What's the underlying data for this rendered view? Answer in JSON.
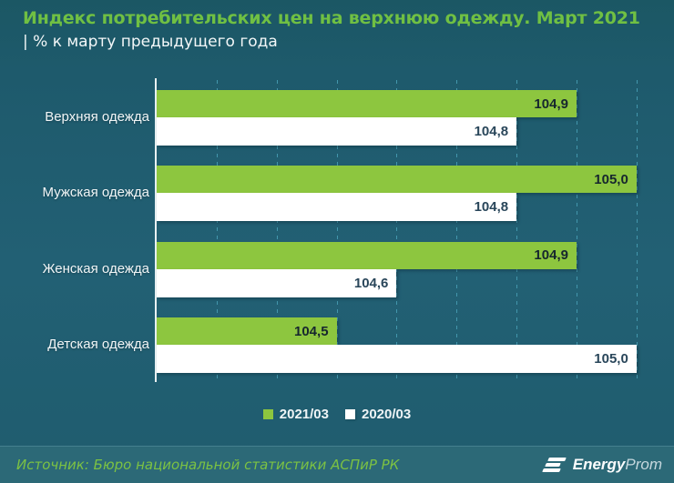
{
  "header": {
    "title": "Индекс потребительских цен на верхнюю одежду. Март 2021",
    "subtitle": "| % к марту предыдущего года"
  },
  "chart_data": {
    "type": "bar",
    "orientation": "horizontal",
    "title": "Индекс потребительских цен на верхнюю одежду. Март 2021",
    "subtitle": "| % к марту предыдущего года",
    "categories": [
      "Верхняя одежда",
      "Мужская одежда",
      "Женская одежда",
      "Детская одежда"
    ],
    "series": [
      {
        "name": "2021/03",
        "color": "#8dc63f",
        "values": [
          104.9,
          105.0,
          104.9,
          104.5
        ],
        "labels": [
          "104,9",
          "105,0",
          "104,9",
          "104,5"
        ]
      },
      {
        "name": "2020/03",
        "color": "#ffffff",
        "values": [
          104.8,
          104.8,
          104.6,
          105.0
        ],
        "labels": [
          "104,8",
          "104,8",
          "104,6",
          "105,0"
        ]
      }
    ],
    "xlim": [
      104.2,
      105.02
    ],
    "gridline_step": 0.1,
    "grid": true,
    "legend_position": "bottom"
  },
  "footer": {
    "source": "Источник: Бюро национальной статистики АСПиР РК",
    "logo": {
      "bold": "Energy",
      "light": "Prom"
    }
  },
  "colors": {
    "background": "#1e5b6d",
    "title_green": "#70c043",
    "bar_green": "#8dc63f",
    "bar_white": "#ffffff",
    "gridline": "#4397ad",
    "axis_line": "#e9f1f2",
    "value_text_on_green": "#16262e",
    "value_text_on_white": "#29465a",
    "footer_background": "#2c6977",
    "source_green": "#7cc243"
  }
}
